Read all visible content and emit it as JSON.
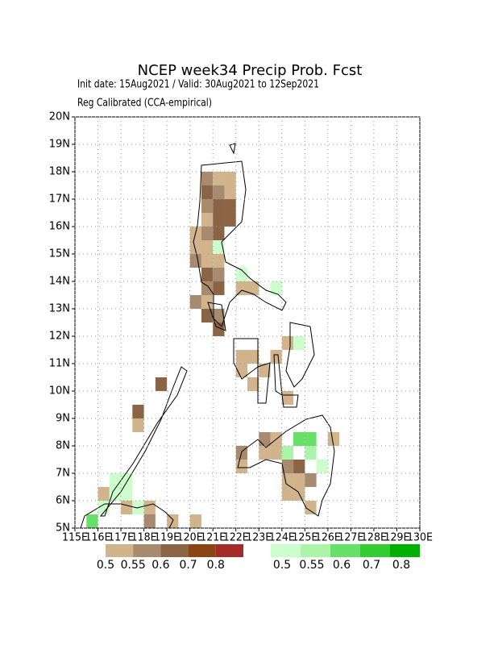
{
  "chart_data": {
    "type": "grid-map",
    "title": "NCEP week34 Precip Prob. Fcst",
    "subtitle": "Init date: 15Aug2021 / Valid: 30Aug2021 to 12Sep2021",
    "subtitle2": "Reg Calibrated (CCA-empirical)",
    "xlim": [
      115,
      130
    ],
    "ylim": [
      5,
      20
    ],
    "xticks": [
      {
        "value": 115,
        "label": "115E"
      },
      {
        "value": 116,
        "label": "116E"
      },
      {
        "value": 117,
        "label": "117E"
      },
      {
        "value": 118,
        "label": "118E"
      },
      {
        "value": 119,
        "label": "119E"
      },
      {
        "value": 120,
        "label": "120E"
      },
      {
        "value": 121,
        "label": "121E"
      },
      {
        "value": 122,
        "label": "122E"
      },
      {
        "value": 123,
        "label": "123E"
      },
      {
        "value": 124,
        "label": "124E"
      },
      {
        "value": 125,
        "label": "125E"
      },
      {
        "value": 126,
        "label": "126E"
      },
      {
        "value": 127,
        "label": "127E"
      },
      {
        "value": 128,
        "label": "128E"
      },
      {
        "value": 129,
        "label": "129E"
      },
      {
        "value": 130,
        "label": "130E"
      }
    ],
    "yticks": [
      {
        "value": 5,
        "label": "5N"
      },
      {
        "value": 6,
        "label": "6N"
      },
      {
        "value": 7,
        "label": "7N"
      },
      {
        "value": 8,
        "label": "8N"
      },
      {
        "value": 9,
        "label": "9N"
      },
      {
        "value": 10,
        "label": "10N"
      },
      {
        "value": 11,
        "label": "11N"
      },
      {
        "value": 12,
        "label": "12N"
      },
      {
        "value": 13,
        "label": "13N"
      },
      {
        "value": 14,
        "label": "14N"
      },
      {
        "value": 15,
        "label": "15N"
      },
      {
        "value": 16,
        "label": "16N"
      },
      {
        "value": 17,
        "label": "17N"
      },
      {
        "value": 18,
        "label": "18N"
      },
      {
        "value": 19,
        "label": "19N"
      },
      {
        "value": 20,
        "label": "20N"
      }
    ],
    "grid": true,
    "cell_size": 0.5,
    "series": [
      {
        "thresholds": [
          0.5,
          0.55,
          0.6,
          0.7,
          0.8
        ],
        "colors": [
          "#d2b48c",
          "#a88a6e",
          "#8b6445",
          "#8b4513",
          "#a52a2a"
        ],
        "cells": [
          [
            120.5,
            17.5,
            0.57
          ],
          [
            121,
            17.5,
            0.52
          ],
          [
            121.5,
            17.5,
            0.52
          ],
          [
            120.5,
            17,
            0.62
          ],
          [
            121,
            17,
            0.57
          ],
          [
            121.5,
            17,
            0.52
          ],
          [
            120.5,
            16.5,
            0.57
          ],
          [
            121,
            16.5,
            0.62
          ],
          [
            121.5,
            16.5,
            0.62
          ],
          [
            120.5,
            16,
            0.52
          ],
          [
            121,
            16,
            0.62
          ],
          [
            121.5,
            16,
            0.62
          ],
          [
            120,
            15.5,
            0.52
          ],
          [
            120.5,
            15.5,
            0.57
          ],
          [
            121,
            15.5,
            0.65
          ],
          [
            120,
            15,
            0.52
          ],
          [
            120.5,
            15,
            0.52
          ],
          [
            120,
            14.5,
            0.57
          ],
          [
            120.5,
            14.5,
            0.52
          ],
          [
            121,
            14.5,
            0.52
          ],
          [
            120.5,
            14,
            0.62
          ],
          [
            121,
            14,
            0.57
          ],
          [
            122.5,
            13.5,
            0.52
          ],
          [
            120.5,
            13.5,
            0.57
          ],
          [
            121,
            13.5,
            0.62
          ],
          [
            122,
            13.5,
            0.52
          ],
          [
            120,
            13,
            0.57
          ],
          [
            120.5,
            13,
            0.52
          ],
          [
            120.5,
            12.5,
            0.62
          ],
          [
            121,
            12.5,
            0.57
          ],
          [
            121,
            12,
            0.62
          ],
          [
            124,
            11.5,
            0.52
          ],
          [
            122,
            11,
            0.52
          ],
          [
            122.5,
            11,
            0.52
          ],
          [
            123.5,
            11,
            0.52
          ],
          [
            122,
            10.5,
            0.52
          ],
          [
            123,
            10.5,
            0.52
          ],
          [
            118.5,
            10,
            0.62
          ],
          [
            122.5,
            10,
            0.52
          ],
          [
            124,
            9.5,
            0.52
          ],
          [
            117.5,
            9,
            0.62
          ],
          [
            117.5,
            8.5,
            0.52
          ],
          [
            123,
            8,
            0.57
          ],
          [
            123.5,
            8,
            0.52
          ],
          [
            126,
            8,
            0.52
          ],
          [
            122,
            7.5,
            0.57
          ],
          [
            123,
            7.5,
            0.52
          ],
          [
            123.5,
            7.5,
            0.52
          ],
          [
            122,
            7,
            0.52
          ],
          [
            124,
            7,
            0.57
          ],
          [
            124.5,
            7,
            0.62
          ],
          [
            124,
            6.5,
            0.52
          ],
          [
            124.5,
            6.5,
            0.52
          ],
          [
            125,
            6.5,
            0.57
          ],
          [
            124,
            6,
            0.52
          ],
          [
            124.5,
            6,
            0.52
          ],
          [
            125,
            5.5,
            0.52
          ],
          [
            116,
            6,
            0.52
          ],
          [
            117,
            5.5,
            0.52
          ],
          [
            118,
            5.5,
            0.52
          ],
          [
            118,
            5,
            0.57
          ],
          [
            119,
            5,
            0.52
          ],
          [
            120,
            5,
            0.52
          ]
        ]
      },
      {
        "thresholds": [
          0.5,
          0.55,
          0.6,
          0.7,
          0.8
        ],
        "colors": [
          "#ccffcc",
          "#aaf5aa",
          "#66e066",
          "#33cc33",
          "#00b000"
        ],
        "cells": [
          [
            121,
            15,
            0.52
          ],
          [
            122,
            14,
            0.52
          ],
          [
            123.5,
            13.5,
            0.52
          ],
          [
            124.5,
            11.5,
            0.52
          ],
          [
            124.5,
            8,
            0.62
          ],
          [
            125,
            8,
            0.62
          ],
          [
            124,
            7.5,
            0.57
          ],
          [
            125,
            7.5,
            0.57
          ],
          [
            125.5,
            7,
            0.52
          ],
          [
            116.5,
            6.5,
            0.52
          ],
          [
            117,
            6.5,
            0.52
          ],
          [
            116.5,
            6,
            0.52
          ],
          [
            117,
            6,
            0.52
          ],
          [
            116,
            5.5,
            0.52
          ],
          [
            117.5,
            5.5,
            0.52
          ],
          [
            115.5,
            5,
            0.62
          ]
        ]
      }
    ],
    "legend_labels": [
      "0.5",
      "0.55",
      "0.6",
      "0.7",
      "0.8"
    ]
  }
}
